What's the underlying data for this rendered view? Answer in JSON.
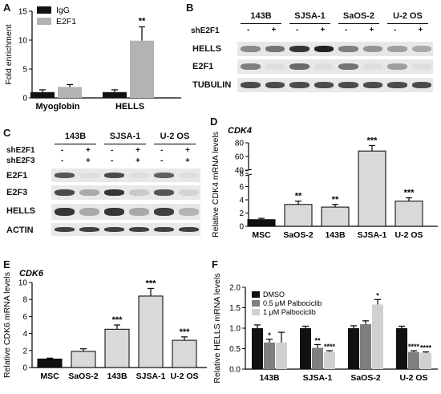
{
  "figure": {
    "panels": {
      "A": {
        "label": "A"
      },
      "B": {
        "label": "B"
      },
      "C": {
        "label": "C"
      },
      "D": {
        "label": "D",
        "gene": "CDK4"
      },
      "E": {
        "label": "E",
        "gene": "CDK6"
      },
      "F": {
        "label": "F"
      }
    }
  },
  "chart_data": [
    {
      "panel": "A",
      "type": "bar",
      "categories": [
        "Myoglobin",
        "HELLS"
      ],
      "series": [
        {
          "name": "IgG",
          "values": [
            1.0,
            1.0
          ],
          "errors": [
            0.4,
            0.4
          ],
          "color": "#111111"
        },
        {
          "name": "E2F1",
          "values": [
            1.9,
            9.9
          ],
          "errors": [
            0.4,
            2.4
          ],
          "color": "#b3b3b3"
        }
      ],
      "ylabel": "Fold enrichment",
      "ylim": [
        0,
        15
      ],
      "yticks": [
        0,
        5,
        10,
        15
      ],
      "annotations": [
        {
          "category": "HELLS",
          "series": "E2F1",
          "text": "**"
        }
      ],
      "legend": "top-left"
    },
    {
      "panel": "D",
      "type": "bar",
      "title": "CDK4",
      "categories": [
        "MSC",
        "SaOS-2",
        "143B",
        "SJSA-1",
        "U-2 OS"
      ],
      "values": [
        1.0,
        3.3,
        2.9,
        68,
        3.8
      ],
      "errors": [
        0.2,
        0.5,
        0.4,
        8,
        0.5
      ],
      "significance": [
        "",
        "**",
        "**",
        "***",
        "***"
      ],
      "colors": [
        "#111111",
        "#d9d9d9",
        "#d9d9d9",
        "#d9d9d9",
        "#d9d9d9"
      ],
      "ylabel": "Relative CDK4 mRNA levels",
      "ylim": [
        0,
        80
      ],
      "axis_break": [
        8,
        40
      ],
      "yticks": [
        0,
        2,
        4,
        6,
        8,
        40,
        60,
        80
      ]
    },
    {
      "panel": "E",
      "type": "bar",
      "title": "CDK6",
      "categories": [
        "MSC",
        "SaOS-2",
        "143B",
        "SJSA-1",
        "U-2 OS"
      ],
      "values": [
        1.0,
        1.9,
        4.5,
        8.4,
        3.2
      ],
      "errors": [
        0.1,
        0.3,
        0.5,
        0.9,
        0.4
      ],
      "significance": [
        "",
        "",
        "***",
        "***",
        "***"
      ],
      "colors": [
        "#111111",
        "#d9d9d9",
        "#d9d9d9",
        "#d9d9d9",
        "#d9d9d9"
      ],
      "ylabel": "Relative CDK6 mRNA levels",
      "ylim": [
        0,
        10
      ],
      "yticks": [
        0,
        2,
        4,
        6,
        8,
        10
      ]
    },
    {
      "panel": "F",
      "type": "bar",
      "categories": [
        "143B",
        "SJSA-1",
        "SaOS-2",
        "U-2 OS"
      ],
      "series": [
        {
          "name": "DMSO",
          "values": [
            1.0,
            1.0,
            1.0,
            1.0
          ],
          "errors": [
            0.08,
            0.05,
            0.06,
            0.05
          ],
          "significance": [
            "",
            "",
            "",
            ""
          ],
          "color": "#111111"
        },
        {
          "name": "0.5 μM Palbociclib",
          "values": [
            0.65,
            0.52,
            1.1,
            0.42
          ],
          "errors": [
            0.08,
            0.08,
            0.08,
            0.03
          ],
          "significance": [
            "*",
            "**",
            "",
            "****"
          ],
          "color": "#7f7f7f"
        },
        {
          "name": "1 μM Palbociclib",
          "values": [
            0.65,
            0.42,
            1.58,
            0.4
          ],
          "errors": [
            0.25,
            0.03,
            0.12,
            0.02
          ],
          "significance": [
            "",
            "****",
            "*",
            "****"
          ],
          "color": "#d0d0d0"
        }
      ],
      "ylabel": "Relative HELLS mRNA levels",
      "ylim": [
        0,
        2.0
      ],
      "yticks": [
        0.0,
        0.5,
        1.0,
        1.5,
        2.0
      ],
      "legend": "top-left"
    }
  ],
  "blots": {
    "B": {
      "cell_lines": [
        "143B",
        "SJSA-1",
        "SaOS-2",
        "U-2 OS"
      ],
      "treatment_label": "shE2F1",
      "treatment_signs": [
        "-",
        "+",
        "-",
        "+",
        "-",
        "+",
        "-",
        "+"
      ],
      "rows": [
        {
          "name": "HELLS",
          "intensity": [
            0.45,
            0.55,
            0.85,
            0.95,
            0.5,
            0.4,
            0.35,
            0.3
          ]
        },
        {
          "name": "E2F1",
          "intensity": [
            0.5,
            0.05,
            0.6,
            0.05,
            0.55,
            0.05,
            0.35,
            0.05
          ]
        },
        {
          "name": "TUBULIN",
          "intensity": [
            0.75,
            0.75,
            0.75,
            0.75,
            0.75,
            0.75,
            0.75,
            0.75
          ]
        }
      ]
    },
    "C": {
      "cell_lines": [
        "143B",
        "SJSA-1",
        "U-2 OS"
      ],
      "treatment_rows": [
        {
          "label": "shE2F1",
          "signs": [
            "-",
            "+",
            "-",
            "+",
            "-",
            "+"
          ]
        },
        {
          "label": "shE2F3",
          "signs": [
            "-",
            "+",
            "-",
            "+",
            "-",
            "+"
          ]
        }
      ],
      "rows": [
        {
          "name": "E2F1",
          "intensity": [
            0.7,
            0.05,
            0.75,
            0.05,
            0.65,
            0.05
          ]
        },
        {
          "name": "E2F3",
          "intensity": [
            0.75,
            0.3,
            0.85,
            0.15,
            0.7,
            0.1
          ]
        },
        {
          "name": "HELLS",
          "intensity": [
            0.85,
            0.3,
            0.85,
            0.3,
            0.8,
            0.25
          ]
        },
        {
          "name": "ACTIN",
          "intensity": [
            0.8,
            0.8,
            0.8,
            0.8,
            0.8,
            0.8
          ]
        }
      ]
    }
  }
}
